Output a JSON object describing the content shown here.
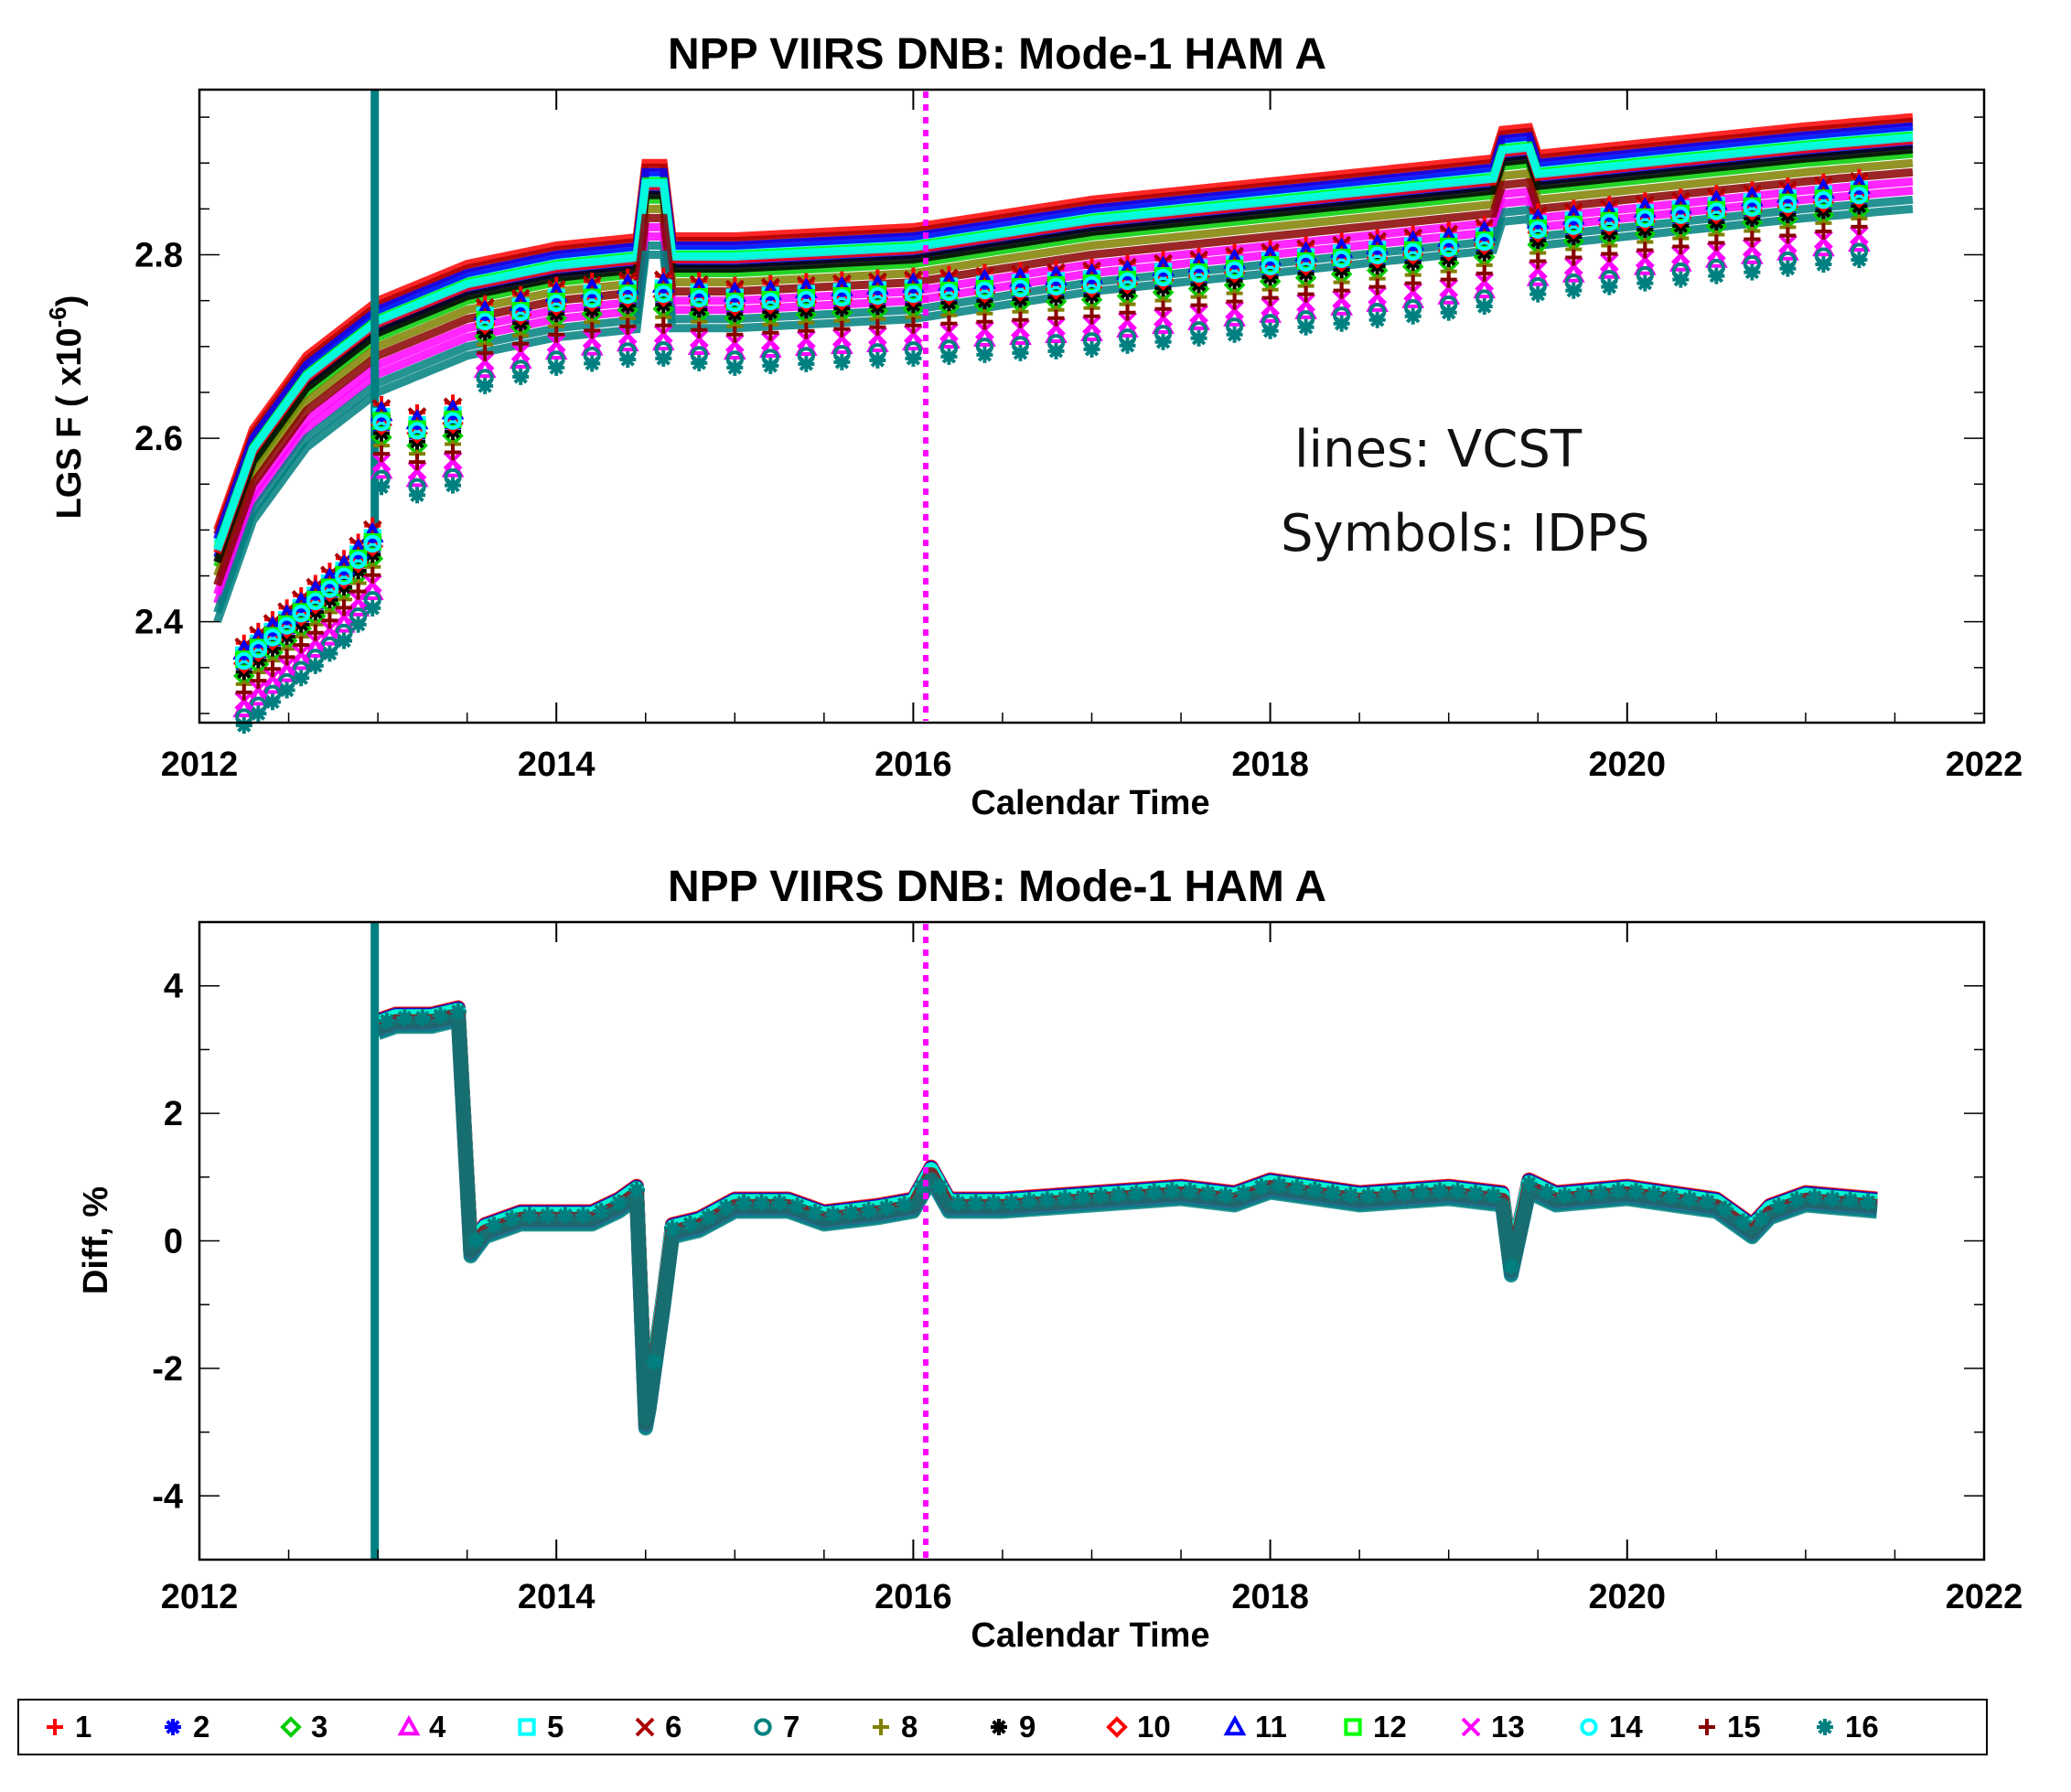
{
  "chart_data": [
    {
      "type": "line",
      "title": "NPP VIIRS DNB:  Mode-1  HAM A",
      "xlabel": "Calendar Time",
      "ylabel": "LGS F",
      "ylabel_unit": "( x10",
      "ylabel_exp": "-6",
      "ylabel_close": ")",
      "xlim": [
        2012,
        2022
      ],
      "ylim": [
        2.29,
        2.98
      ],
      "xticks": [
        2012,
        2014,
        2016,
        2018,
        2020,
        2022
      ],
      "yticks": [
        2.4,
        2.6,
        2.8
      ],
      "ytick_labels": [
        "2.4",
        "2.6",
        "2.8"
      ],
      "annotations": [
        "lines: VCST",
        "Symbols: IDPS"
      ],
      "vline_x": 2016.07,
      "series": [
        {
          "name": "1",
          "color": "#ff0000",
          "offset": 0.03
        },
        {
          "name": "2",
          "color": "#0000ff",
          "offset": 0.0
        },
        {
          "name": "3",
          "color": "#00cc00",
          "offset": -0.01
        },
        {
          "name": "4",
          "color": "#ff00ff",
          "offset": -0.05
        },
        {
          "name": "5",
          "color": "#00ffff",
          "offset": 0.015
        },
        {
          "name": "6",
          "color": "#aa0000",
          "offset": 0.025
        },
        {
          "name": "7",
          "color": "#008080",
          "offset": -0.06
        },
        {
          "name": "8",
          "color": "#808000",
          "offset": -0.02
        },
        {
          "name": "9",
          "color": "#000000",
          "offset": -0.005
        },
        {
          "name": "10",
          "color": "#ff0000",
          "offset": 0.005
        },
        {
          "name": "11",
          "color": "#0000ff",
          "offset": 0.02
        },
        {
          "name": "12",
          "color": "#00ff00",
          "offset": 0.01
        },
        {
          "name": "13",
          "color": "#ff00ff",
          "offset": -0.04
        },
        {
          "name": "14",
          "color": "#00ffff",
          "offset": 0.008
        },
        {
          "name": "15",
          "color": "#880000",
          "offset": -0.03
        },
        {
          "name": "16",
          "color": "#008080",
          "offset": -0.07
        }
      ],
      "base_curve": {
        "x": [
          2012.1,
          2012.3,
          2012.6,
          2013.0,
          2013.5,
          2014.0,
          2014.5,
          2015.0,
          2016.0,
          2017.0,
          2018.0,
          2019.0,
          2020.0,
          2021.0,
          2021.6
        ],
        "y": [
          2.47,
          2.58,
          2.66,
          2.72,
          2.76,
          2.78,
          2.79,
          2.79,
          2.8,
          2.83,
          2.85,
          2.87,
          2.89,
          2.91,
          2.92
        ]
      },
      "idps_segments": [
        {
          "x": [
            2012.25,
            2012.5,
            2012.8,
            2012.98
          ],
          "y": [
            2.35,
            2.39,
            2.44,
            2.48
          ]
        },
        {
          "x": [
            2013.02,
            2013.2,
            2013.4,
            2013.52
          ],
          "y": [
            2.61,
            2.6,
            2.61,
            2.62
          ]
        },
        {
          "x": [
            2013.6,
            2014.0,
            2014.45
          ],
          "y": [
            2.72,
            2.74,
            2.75
          ]
        },
        {
          "x": [
            2014.6,
            2015.0,
            2016.0,
            2017.0,
            2018.0,
            2019.0,
            2019.3
          ],
          "y": [
            2.75,
            2.74,
            2.75,
            2.76,
            2.78,
            2.8,
            2.81
          ]
        },
        {
          "x": [
            2019.5,
            2020.0,
            2021.0,
            2021.4
          ],
          "y": [
            2.82,
            2.83,
            2.85,
            2.86
          ]
        }
      ]
    },
    {
      "type": "line",
      "title": "NPP VIIRS DNB:  Mode-1  HAM A",
      "xlabel": "Calendar Time",
      "ylabel": "Diff, %",
      "xlim": [
        2012,
        2022
      ],
      "ylim": [
        -5,
        5
      ],
      "xticks": [
        2012,
        2014,
        2016,
        2018,
        2020,
        2022
      ],
      "yticks": [
        -4,
        -2,
        0,
        2,
        4
      ],
      "vline_x": 2016.07,
      "spike_x": 2012.98,
      "diff_curve": {
        "x": [
          2013.0,
          2013.1,
          2013.3,
          2013.45,
          2013.52,
          2013.6,
          2013.8,
          2014.0,
          2014.2,
          2014.35,
          2014.45,
          2014.5,
          2014.52,
          2014.55,
          2014.6,
          2014.65,
          2014.8,
          2015.0,
          2015.3,
          2015.5,
          2015.8,
          2016.0,
          2016.1,
          2016.2,
          2016.5,
          2017.0,
          2017.5,
          2017.8,
          2018.0,
          2018.5,
          2019.0,
          2019.3,
          2019.35,
          2019.45,
          2019.6,
          2020.0,
          2020.5,
          2020.7,
          2020.8,
          2021.0,
          2021.4
        ],
        "y": [
          3.4,
          3.5,
          3.5,
          3.6,
          -0.1,
          0.2,
          0.4,
          0.4,
          0.4,
          0.6,
          0.8,
          -2.8,
          -2.5,
          -1.9,
          -0.9,
          0.2,
          0.3,
          0.6,
          0.6,
          0.4,
          0.5,
          0.6,
          1.1,
          0.6,
          0.6,
          0.7,
          0.8,
          0.7,
          0.9,
          0.7,
          0.8,
          0.7,
          -0.4,
          0.9,
          0.7,
          0.8,
          0.6,
          0.2,
          0.5,
          0.7,
          0.6
        ]
      }
    }
  ],
  "legend": {
    "placement": "bottom",
    "entries": [
      {
        "label": "1",
        "symbol": "plus",
        "color": "#ff0000"
      },
      {
        "label": "2",
        "symbol": "asterisk",
        "color": "#0000ff"
      },
      {
        "label": "3",
        "symbol": "diamond",
        "color": "#00cc00"
      },
      {
        "label": "4",
        "symbol": "triangle",
        "color": "#ff00ff"
      },
      {
        "label": "5",
        "symbol": "square",
        "color": "#00ffff"
      },
      {
        "label": "6",
        "symbol": "x",
        "color": "#aa0000"
      },
      {
        "label": "7",
        "symbol": "circle",
        "color": "#008080"
      },
      {
        "label": "8",
        "symbol": "plus",
        "color": "#808000"
      },
      {
        "label": "9",
        "symbol": "asterisk",
        "color": "#000000"
      },
      {
        "label": "10",
        "symbol": "diamond",
        "color": "#ff0000"
      },
      {
        "label": "11",
        "symbol": "triangle",
        "color": "#0000ff"
      },
      {
        "label": "12",
        "symbol": "square",
        "color": "#00ff00"
      },
      {
        "label": "13",
        "symbol": "x",
        "color": "#ff00ff"
      },
      {
        "label": "14",
        "symbol": "circle",
        "color": "#00ffff"
      },
      {
        "label": "15",
        "symbol": "plus",
        "color": "#880000"
      },
      {
        "label": "16",
        "symbol": "asterisk",
        "color": "#008080"
      }
    ]
  }
}
